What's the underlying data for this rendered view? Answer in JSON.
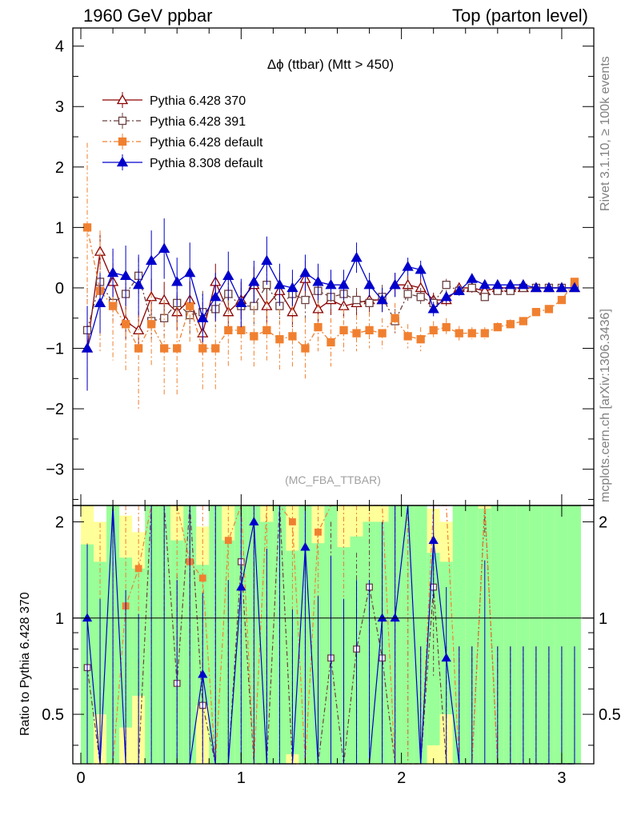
{
  "header": {
    "left": "1960 GeV ppbar",
    "right": "Top (parton level)"
  },
  "side": {
    "rivet": "Rivet 3.1.10, ≥ 100k events",
    "mcplots": "mcplots.cern.ch [arXiv:1306.3436]"
  },
  "chart_data": [
    {
      "type": "line",
      "title": "Δϕ (ttbar) (Mtt > 450)",
      "watermark": "(MC_FBA_TTBAR)",
      "xlim": [
        -0.05,
        3.2
      ],
      "ylim": [
        -3.6,
        4.3
      ],
      "xticks": [
        0,
        1,
        2,
        3
      ],
      "yticks": [
        -3,
        -2,
        -1,
        0,
        1,
        2,
        3,
        4
      ],
      "legend_position": "top-left",
      "x": [
        0.04,
        0.12,
        0.2,
        0.28,
        0.36,
        0.44,
        0.52,
        0.6,
        0.68,
        0.76,
        0.84,
        0.92,
        1.0,
        1.08,
        1.16,
        1.24,
        1.32,
        1.4,
        1.48,
        1.56,
        1.64,
        1.72,
        1.8,
        1.88,
        1.96,
        2.04,
        2.12,
        2.2,
        2.28,
        2.36,
        2.44,
        2.52,
        2.6,
        2.68,
        2.76,
        2.84,
        2.92,
        3.0,
        3.08
      ],
      "series": [
        {
          "name": "Pythia 6.428 370",
          "color": "#8b0000",
          "marker": "open-triangle",
          "dash": "none",
          "values": [
            -1.0,
            0.6,
            0.1,
            -0.55,
            -0.7,
            -0.15,
            -0.2,
            -0.4,
            -0.2,
            -0.75,
            0.1,
            -0.4,
            -0.2,
            0.05,
            -0.3,
            -0.05,
            -0.4,
            0.15,
            -0.35,
            -0.2,
            -0.3,
            -0.25,
            -0.2,
            -0.2,
            0.05,
            0.05,
            0.0,
            -0.2,
            -0.2,
            0.0,
            0.0,
            -0.05,
            0.0,
            0.0,
            0.0,
            0.0,
            0.0,
            0.0,
            0.0
          ],
          "errors": [
            0.7,
            0.3,
            0.3,
            0.3,
            0.3,
            0.3,
            0.3,
            0.3,
            0.3,
            0.35,
            0.3,
            0.3,
            0.3,
            0.3,
            0.3,
            0.3,
            0.25,
            0.3,
            0.25,
            0.25,
            0.2,
            0.2,
            0.2,
            0.2,
            0.2,
            0.15,
            0.15,
            0.12,
            0.1,
            0.08,
            0.08,
            0.06,
            0.05,
            0.05,
            0.04,
            0.04,
            0.03,
            0.03,
            0.03
          ]
        },
        {
          "name": "Pythia 6.428 391",
          "color": "#6b4040",
          "marker": "open-square",
          "dash": "6,3,2,3",
          "values": [
            -0.7,
            0.1,
            -0.25,
            -0.1,
            0.2,
            -0.55,
            -0.5,
            -0.25,
            -0.45,
            -0.4,
            -0.35,
            -0.1,
            -0.3,
            -0.3,
            0.05,
            -0.3,
            -0.1,
            -0.2,
            -0.05,
            -0.15,
            -0.1,
            -0.2,
            -0.25,
            -0.15,
            -0.55,
            -0.1,
            -0.15,
            -0.25,
            0.05,
            -0.05,
            0.0,
            -0.15,
            -0.05,
            -0.05,
            0.0,
            0.0,
            0.0,
            0.0,
            0.0
          ],
          "errors": [
            0.7,
            0.3,
            0.3,
            0.3,
            0.3,
            0.3,
            0.3,
            0.3,
            0.3,
            0.35,
            0.3,
            0.3,
            0.3,
            0.3,
            0.3,
            0.3,
            0.25,
            0.3,
            0.25,
            0.25,
            0.2,
            0.2,
            0.2,
            0.2,
            0.2,
            0.15,
            0.15,
            0.12,
            0.1,
            0.08,
            0.08,
            0.06,
            0.05,
            0.05,
            0.04,
            0.04,
            0.03,
            0.03,
            0.03
          ]
        },
        {
          "name": "Pythia 6.428 default",
          "color": "#f08030",
          "marker": "filled-square",
          "dash": "6,3,2,3",
          "values": [
            1.0,
            -0.05,
            -0.3,
            -0.6,
            -1.0,
            -0.6,
            -1.0,
            -1.0,
            -0.3,
            -1.0,
            -1.0,
            -0.7,
            -0.7,
            -0.8,
            -0.7,
            -0.85,
            -0.8,
            -1.0,
            -0.65,
            -0.9,
            -0.7,
            -0.75,
            -0.7,
            -0.75,
            -0.5,
            -0.8,
            -0.85,
            -0.7,
            -0.65,
            -0.75,
            -0.75,
            -0.75,
            -0.65,
            -0.6,
            -0.55,
            -0.4,
            -0.35,
            -0.2,
            0.1
          ],
          "errors": [
            1.4,
            1.0,
            0.9,
            0.8,
            1.0,
            0.7,
            0.8,
            0.8,
            0.6,
            0.7,
            0.7,
            0.6,
            0.5,
            0.5,
            0.5,
            0.5,
            0.5,
            0.5,
            0.4,
            0.4,
            0.35,
            0.3,
            0.3,
            0.25,
            0.25,
            0.2,
            0.2,
            0.15,
            0.15,
            0.12,
            0.1,
            0.1,
            0.08,
            0.08,
            0.06,
            0.05,
            0.05,
            0.04,
            0.04
          ]
        },
        {
          "name": "Pythia 8.308 default",
          "color": "#0000cc",
          "marker": "filled-triangle",
          "dash": "none",
          "values": [
            -1.0,
            -0.25,
            0.25,
            0.2,
            0.05,
            0.45,
            0.65,
            0.1,
            0.25,
            -0.5,
            -0.15,
            0.2,
            -0.25,
            0.1,
            0.45,
            0.05,
            0.0,
            0.25,
            0.1,
            0.05,
            0.05,
            0.5,
            0.05,
            -0.2,
            0.05,
            0.35,
            0.3,
            -0.35,
            -0.15,
            -0.05,
            0.15,
            0.05,
            0.05,
            0.05,
            0.05,
            0.0,
            0.0,
            0.0,
            0.0
          ],
          "errors": [
            0.7,
            0.5,
            0.4,
            0.5,
            0.5,
            0.5,
            0.5,
            0.4,
            0.5,
            0.4,
            0.4,
            0.4,
            0.4,
            0.35,
            0.4,
            0.35,
            0.3,
            0.3,
            0.3,
            0.25,
            0.25,
            0.25,
            0.2,
            0.2,
            0.2,
            0.15,
            0.15,
            0.12,
            0.1,
            0.08,
            0.08,
            0.06,
            0.05,
            0.05,
            0.04,
            0.04,
            0.03,
            0.03,
            0.03
          ]
        }
      ]
    },
    {
      "type": "line",
      "ylabel": "Ratio to Pythia 6.428 370",
      "xlim": [
        -0.05,
        3.2
      ],
      "ylim": [
        0.35,
        2.25
      ],
      "xticks": [
        0,
        1,
        2,
        3
      ],
      "yticks": [
        0.5,
        1,
        2
      ],
      "ytick_labels": [
        "0.5",
        "1",
        "2"
      ],
      "reference_line": 1,
      "band_colors": {
        "inner": "#99ff99",
        "outer": "#ffff99"
      }
    }
  ]
}
